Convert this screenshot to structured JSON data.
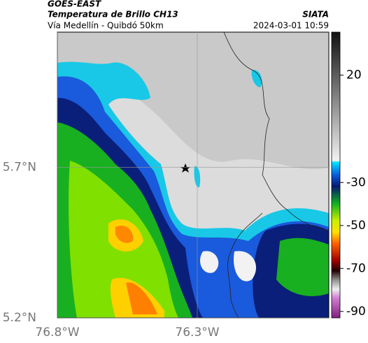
{
  "header": {
    "title": "GOES-EAST",
    "subtitle": "Temperatura de Brillo CH13",
    "route": "Vía Medellín - Quibdó 50km",
    "source": "SIATA",
    "datetime": "2024-03-01 10:59"
  },
  "map": {
    "xlim": [
      -76.8,
      -75.83
    ],
    "ylim": [
      5.2,
      6.15
    ],
    "xticks": [
      {
        "value": -76.8,
        "label": "76.8°W"
      },
      {
        "value": -76.3,
        "label": "76.3°W"
      }
    ],
    "yticks": [
      {
        "value": 5.7,
        "label": "5.7°N"
      },
      {
        "value": 5.2,
        "label": "5.2°N"
      }
    ]
  },
  "colorbar": {
    "lim": [
      -93,
      40
    ],
    "ticks": [
      20,
      -30,
      -50,
      -70,
      -90
    ]
  }
}
